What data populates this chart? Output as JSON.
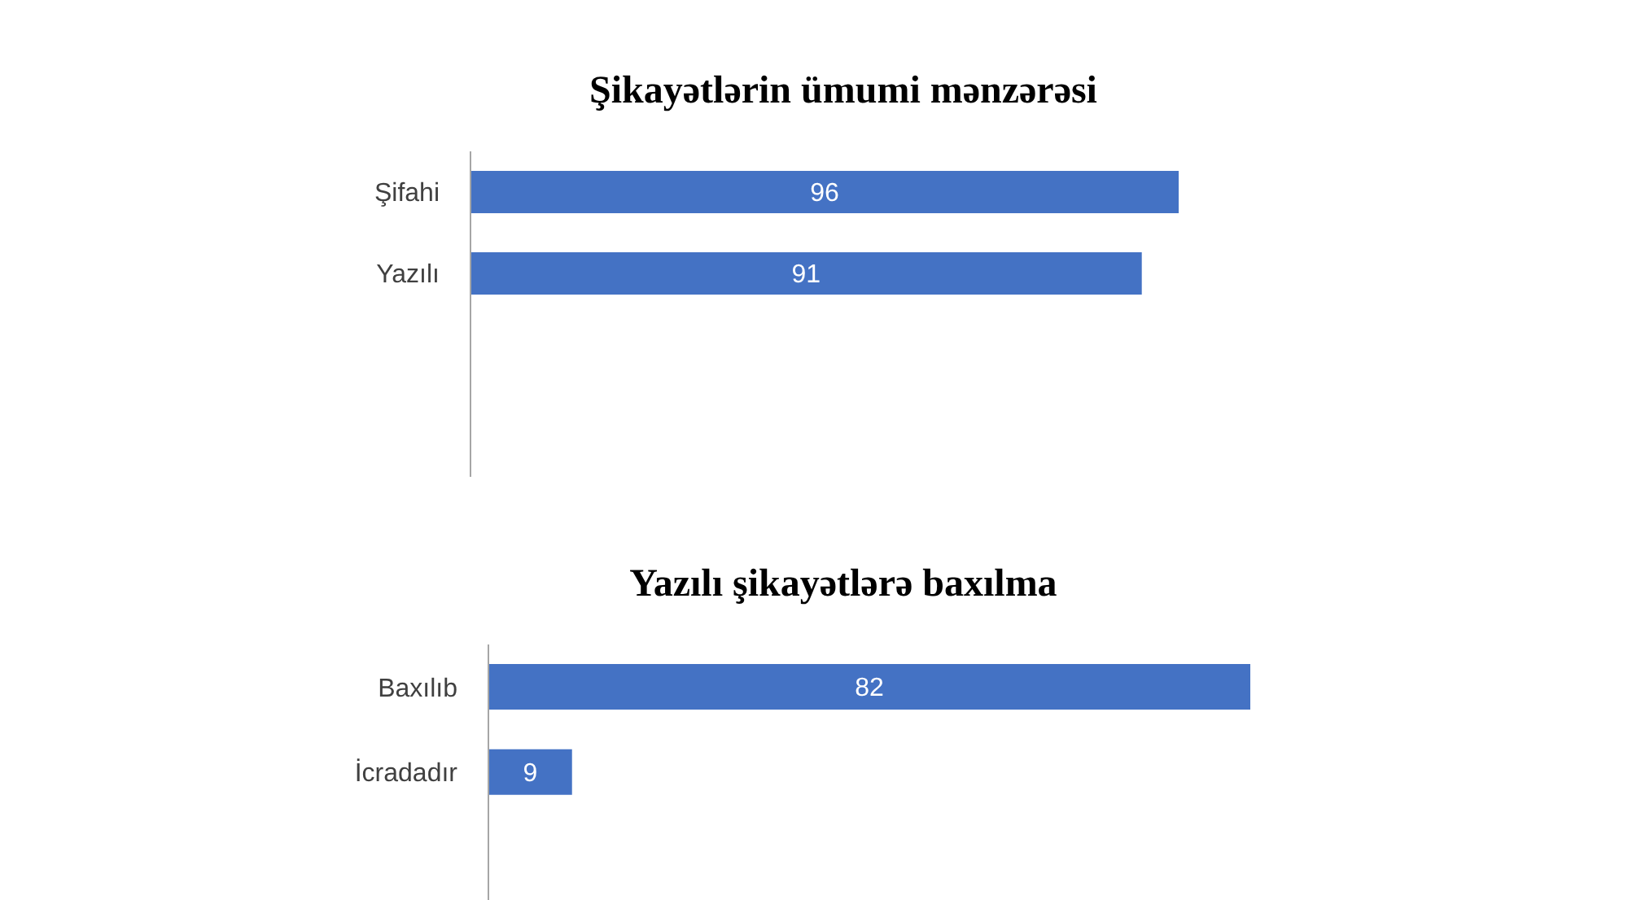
{
  "chart_data": [
    {
      "type": "bar",
      "title": "Şikayətlərin ümumi mənzərəsi",
      "orientation": "horizontal",
      "categories": [
        "Şifahi",
        "Yazılı",
        null,
        null
      ],
      "values": [
        96,
        91,
        null,
        null
      ],
      "color": "#4472c4",
      "tick_labels": "y",
      "data_labels": true
    },
    {
      "type": "bar",
      "title": "Yazılı şikayətlərə baxılma",
      "orientation": "horizontal",
      "categories": [
        "Baxılıb",
        "İcradadır",
        null
      ],
      "values": [
        82,
        9,
        null
      ],
      "color": "#4472c4",
      "tick_labels": "y",
      "data_labels": true
    }
  ]
}
